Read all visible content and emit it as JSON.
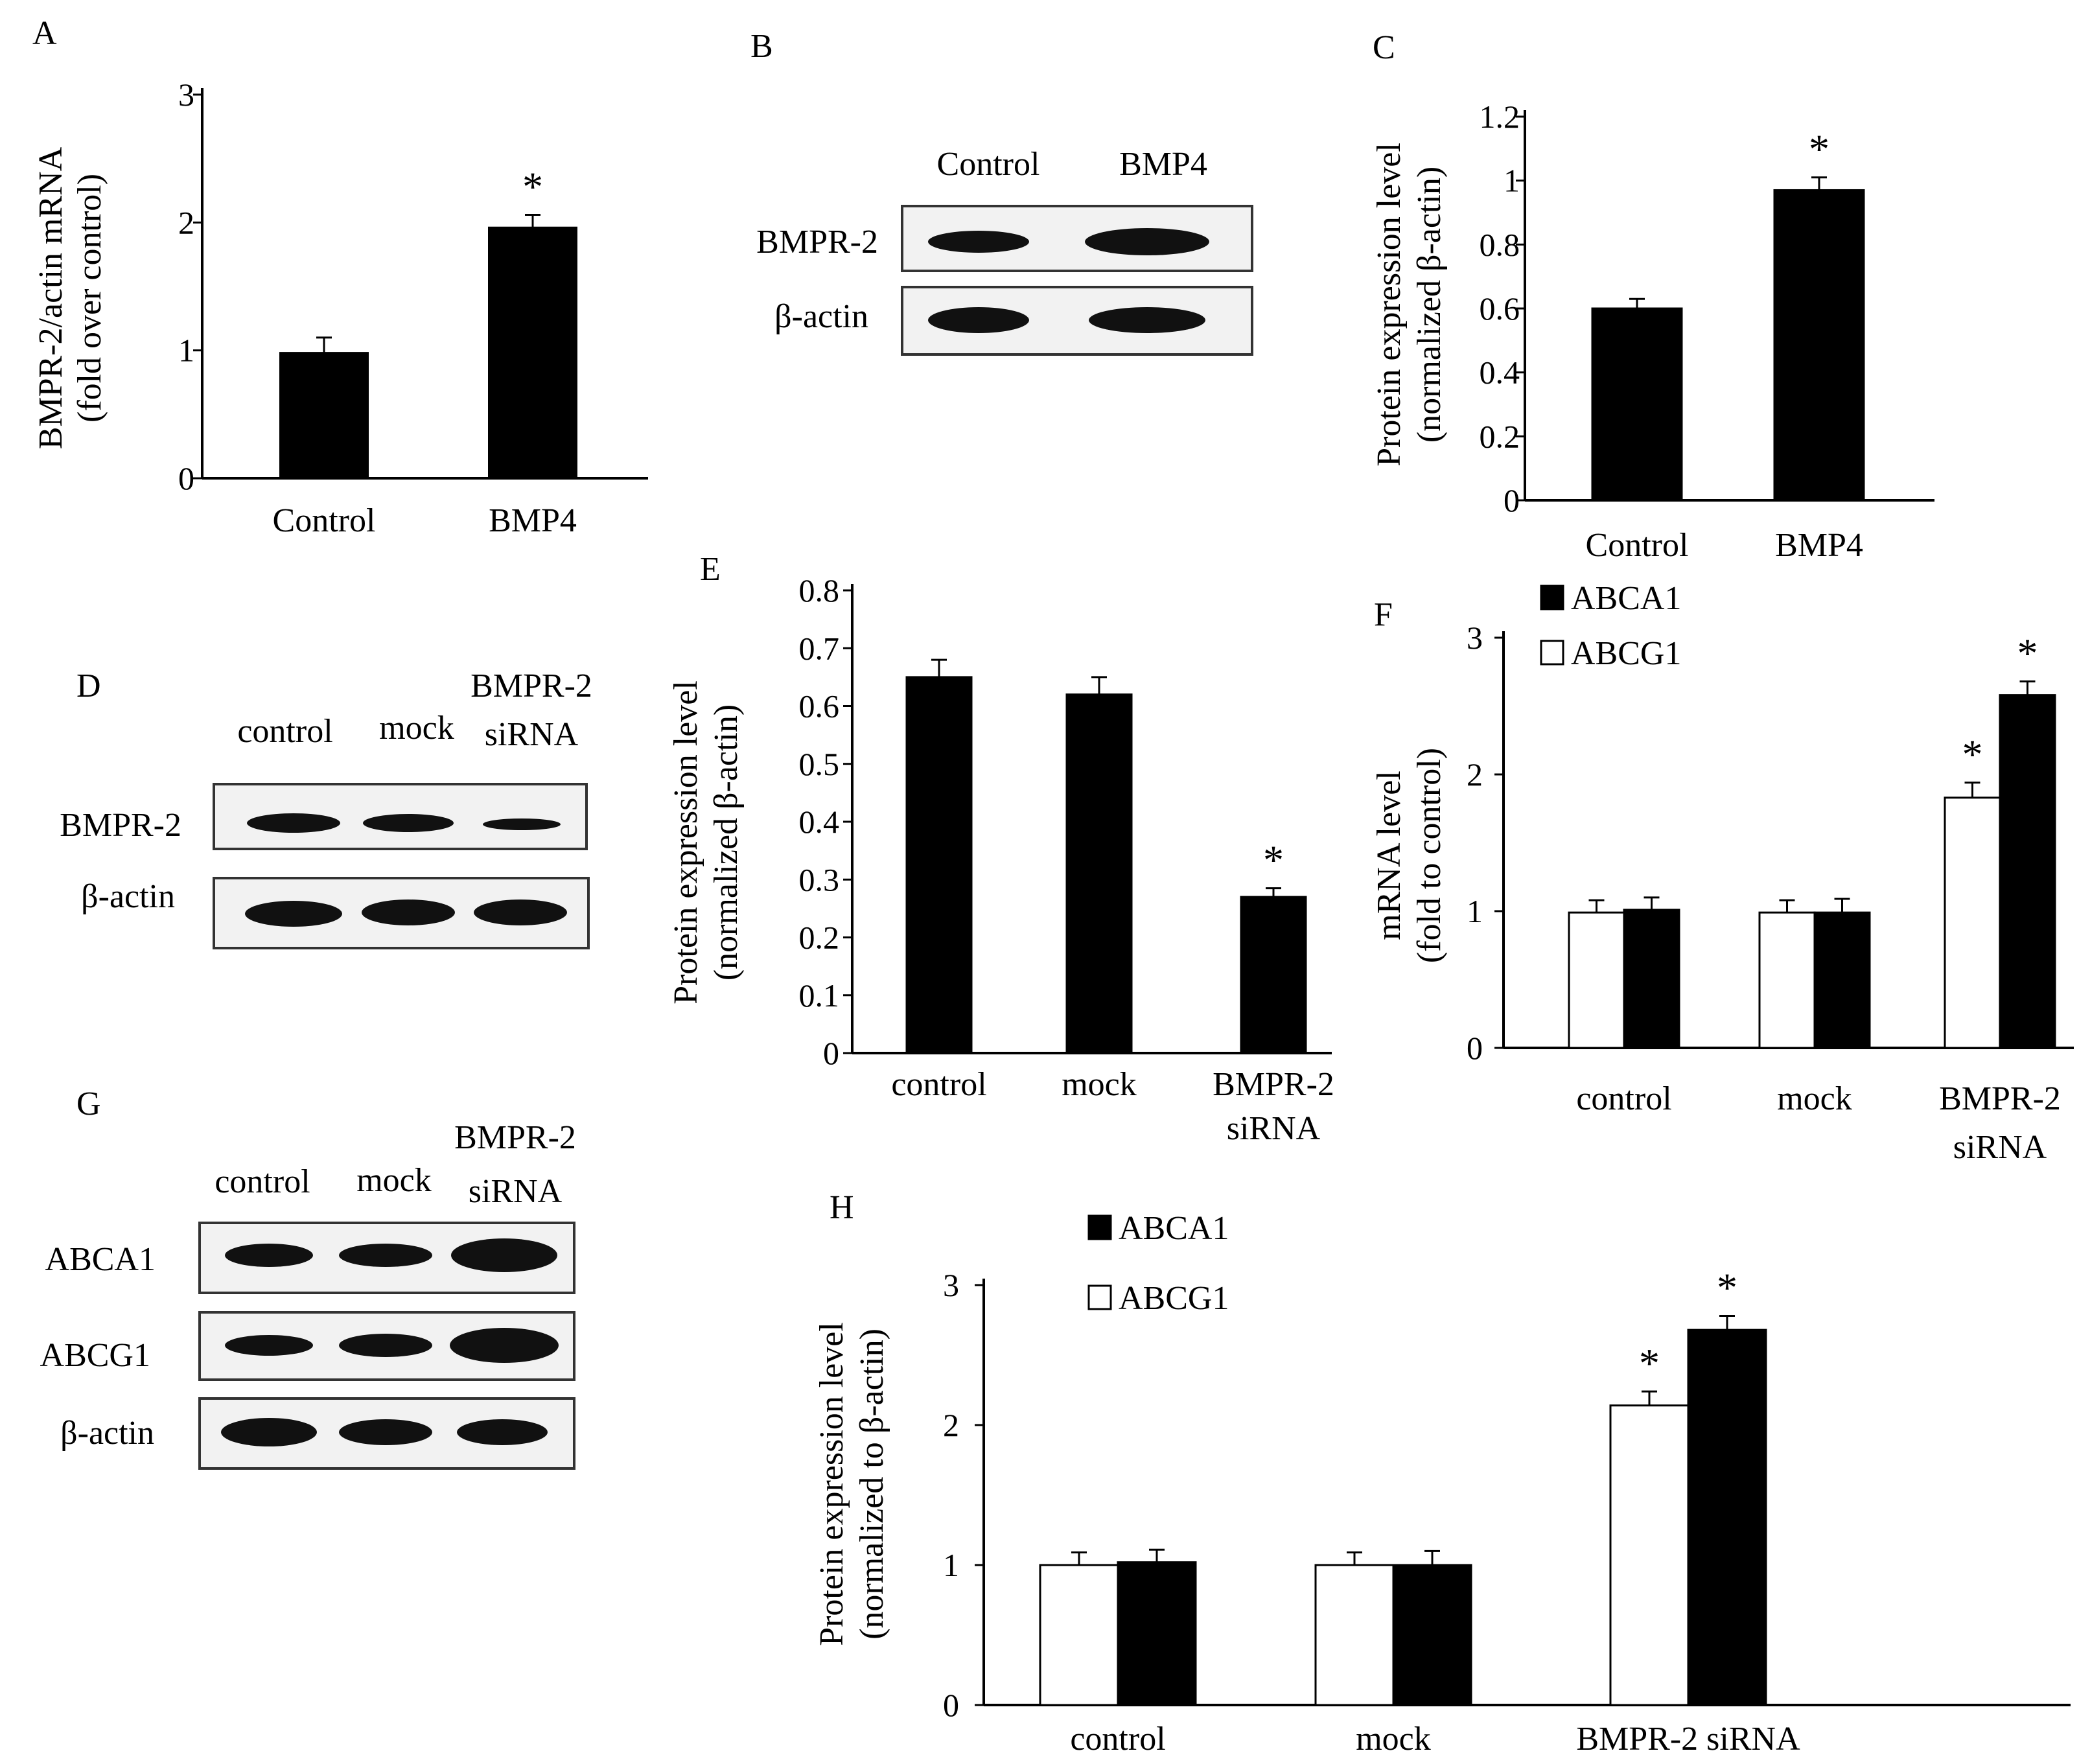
{
  "panels": {
    "A": {
      "letter": "A",
      "ylabel_1": "BMPR-2/actin mRNA",
      "ylabel_2": "(fold over control)"
    },
    "B": {
      "letter": "B",
      "lanes": [
        "Control",
        "BMP4"
      ],
      "rows": [
        "BMPR-2",
        "β-actin"
      ]
    },
    "C": {
      "letter": "C",
      "ylabel_1": "Protein expression level",
      "ylabel_2": "(normalized β-actin)"
    },
    "D": {
      "letter": "D",
      "lanes": [
        "control",
        "mock",
        "BMPR-2",
        "siRNA"
      ],
      "rows": [
        "BMPR-2",
        "β-actin"
      ]
    },
    "E": {
      "letter": "E",
      "ylabel_1": "Protein expression level",
      "ylabel_2": "(normalized β-actin)"
    },
    "F": {
      "letter": "F",
      "ylabel_1": "mRNA level",
      "ylabel_2": "(fold to control)"
    },
    "G": {
      "letter": "G",
      "lanes": [
        "control",
        "mock",
        "BMPR-2",
        "siRNA"
      ],
      "rows": [
        "ABCA1",
        "ABCG1",
        "β-actin"
      ]
    },
    "H": {
      "letter": "H",
      "ylabel_1": "Protein expression level",
      "ylabel_2": "(normalized to β-actin)"
    }
  },
  "colors": {
    "filled": "#000000",
    "open": "#ffffff"
  },
  "chart_data": [
    {
      "id": "A",
      "type": "bar",
      "categories": [
        "Control",
        "BMP4"
      ],
      "values": [
        0.98,
        1.96
      ],
      "errors": [
        0.12,
        0.1
      ],
      "significance": [
        "",
        "*"
      ],
      "yticks": [
        "0",
        "1",
        "2",
        "3"
      ],
      "ylim": [
        0,
        3
      ]
    },
    {
      "id": "C",
      "type": "bar",
      "categories": [
        "Control",
        "BMP4"
      ],
      "values": [
        0.6,
        0.97
      ],
      "errors": [
        0.03,
        0.04
      ],
      "significance": [
        "",
        "*"
      ],
      "yticks": [
        "0",
        "0.2",
        "0.4",
        "0.6",
        "0.8",
        "1",
        "1.2"
      ],
      "ylim": [
        0,
        1.2
      ]
    },
    {
      "id": "E",
      "type": "bar",
      "categories": [
        "control",
        "mock",
        "BMPR-2 siRNA"
      ],
      "category_lines": [
        [
          "control"
        ],
        [
          "mock"
        ],
        [
          "BMPR-2",
          "siRNA"
        ]
      ],
      "values": [
        0.65,
        0.62,
        0.27
      ],
      "errors": [
        0.03,
        0.03,
        0.015
      ],
      "significance": [
        "",
        "",
        "*"
      ],
      "yticks": [
        "0",
        "0.1",
        "0.2",
        "0.3",
        "0.4",
        "0.5",
        "0.6",
        "0.7",
        "0.8"
      ],
      "ylim": [
        0,
        0.8
      ]
    },
    {
      "id": "F",
      "type": "bar",
      "categories": [
        "control",
        "mock",
        "BMPR-2 siRNA"
      ],
      "category_lines": [
        [
          "control"
        ],
        [
          "mock"
        ],
        [
          "BMPR-2",
          "siRNA"
        ]
      ],
      "series": [
        {
          "name": "ABCG1",
          "fill": "open",
          "values": [
            0.99,
            0.99,
            1.83
          ],
          "errors": [
            0.09,
            0.09,
            0.11
          ],
          "significance": [
            "",
            "",
            "*"
          ]
        },
        {
          "name": "ABCA1",
          "fill": "filled",
          "values": [
            1.01,
            0.99,
            2.58
          ],
          "errors": [
            0.09,
            0.1,
            0.1
          ],
          "significance": [
            "",
            "",
            "*"
          ]
        }
      ],
      "legend": [
        {
          "name": "ABCA1",
          "fill": "filled"
        },
        {
          "name": "ABCG1",
          "fill": "open"
        }
      ],
      "legend_position": "top-left",
      "yticks": [
        "0",
        "1",
        "2",
        "3"
      ],
      "ylim": [
        0,
        3
      ]
    },
    {
      "id": "H",
      "type": "bar",
      "categories": [
        "control",
        "mock",
        "BMPR-2 siRNA"
      ],
      "category_lines": [
        [
          "control"
        ],
        [
          "mock"
        ],
        [
          "BMPR-2 siRNA"
        ]
      ],
      "series": [
        {
          "name": "ABCG1",
          "fill": "open",
          "values": [
            1.0,
            1.0,
            2.14
          ],
          "errors": [
            0.09,
            0.09,
            0.1
          ],
          "significance": [
            "",
            "",
            "*"
          ]
        },
        {
          "name": "ABCA1",
          "fill": "filled",
          "values": [
            1.02,
            1.0,
            2.68
          ],
          "errors": [
            0.09,
            0.1,
            0.1
          ],
          "significance": [
            "",
            "",
            "*"
          ]
        }
      ],
      "legend": [
        {
          "name": "ABCA1",
          "fill": "filled"
        },
        {
          "name": "ABCG1",
          "fill": "open"
        }
      ],
      "legend_position": "top-left",
      "yticks": [
        "0",
        "1",
        "2",
        "3"
      ],
      "ylim": [
        0,
        3
      ]
    }
  ]
}
